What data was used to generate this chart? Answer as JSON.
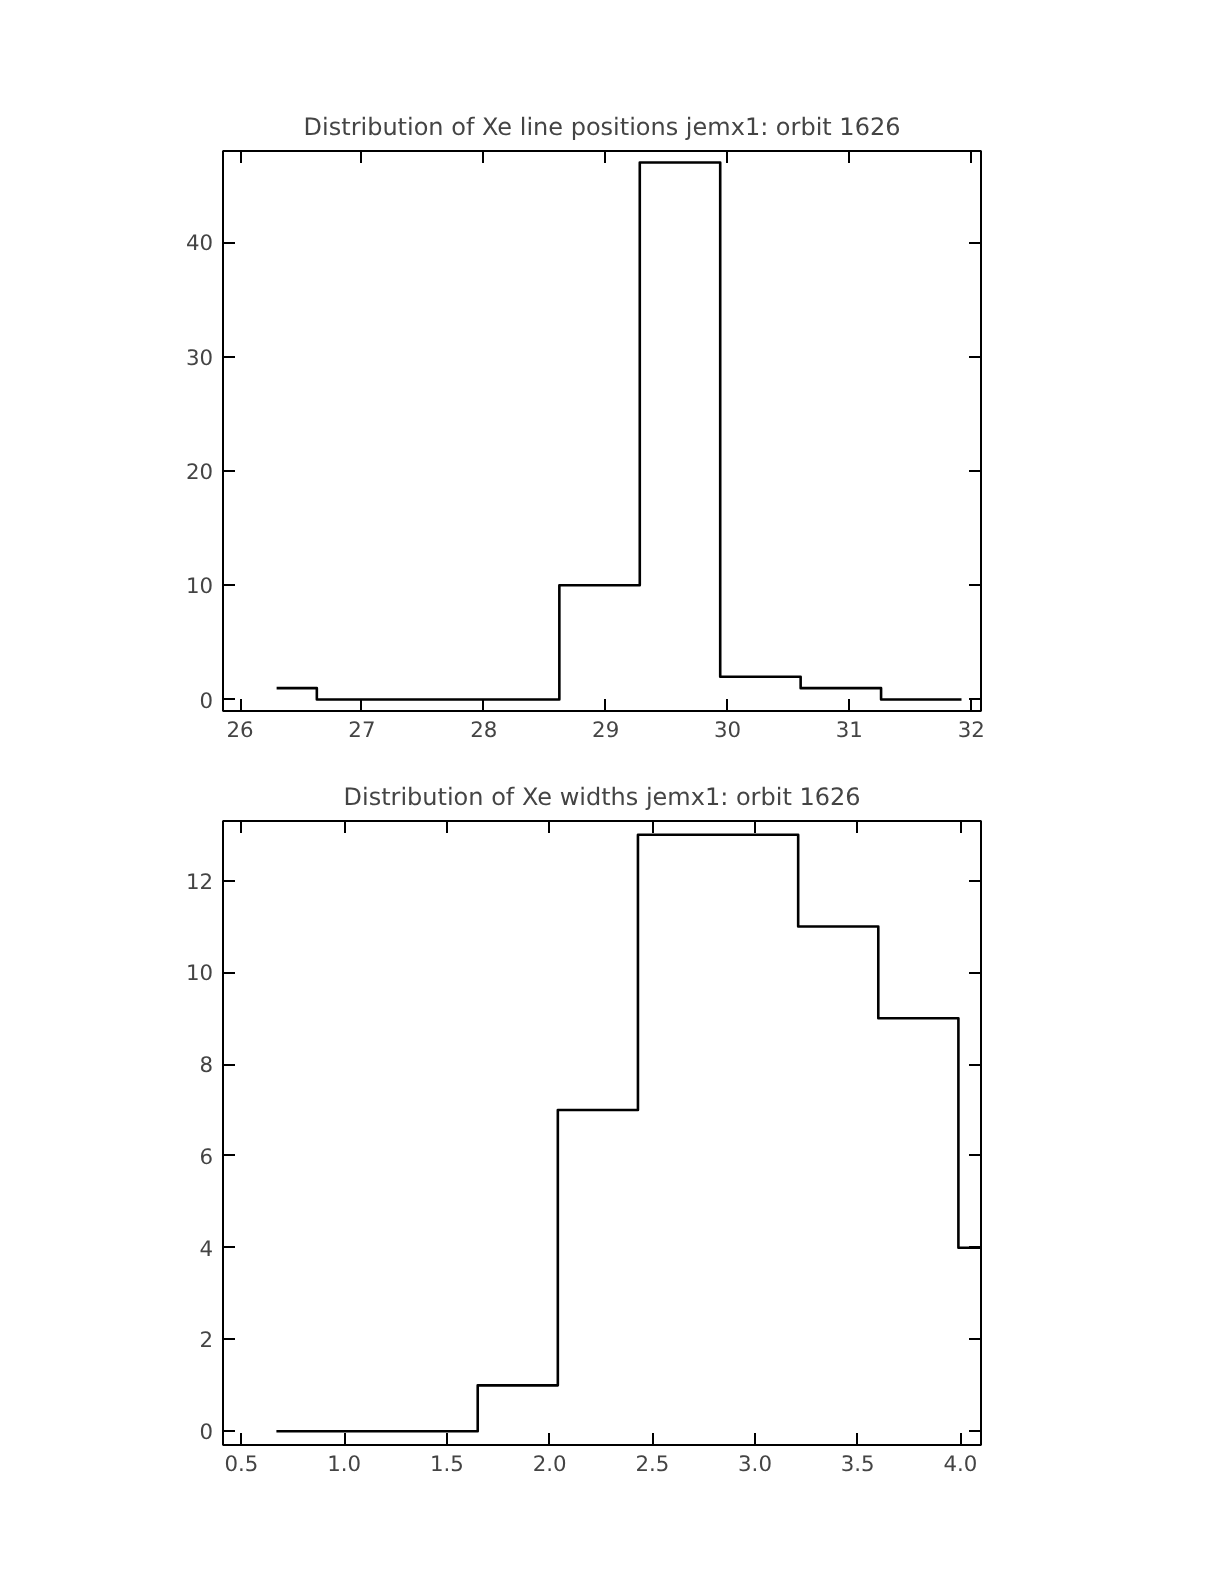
{
  "chart_data": [
    {
      "type": "histogram",
      "title": "Distribution of Xe line positions jemx1: orbit 1626",
      "bins": [
        26.3,
        26.63,
        27.29,
        27.95,
        28.62,
        29.28,
        29.94,
        30.6,
        31.26,
        31.92
      ],
      "values": [
        1,
        0,
        0,
        0,
        10,
        47,
        2,
        1,
        0
      ],
      "color": "#000000",
      "xlim": [
        25.86,
        32.08
      ],
      "ylim": [
        -1,
        48
      ],
      "xticks": [
        26,
        27,
        28,
        29,
        30,
        31,
        32
      ],
      "yticks": [
        0,
        10,
        20,
        30,
        40
      ],
      "grid": false
    },
    {
      "type": "histogram",
      "title": "Distribution of Xe widths jemx1: orbit 1626",
      "bins": [
        0.67,
        0.87,
        1.26,
        1.65,
        2.04,
        2.43,
        2.82,
        3.21,
        3.6,
        3.99,
        4.1
      ],
      "values": [
        0,
        0,
        0,
        1,
        7,
        13,
        13,
        11,
        9,
        4
      ],
      "color": "#000000",
      "xlim": [
        0.41,
        4.1
      ],
      "ylim": [
        -0.3,
        13.3
      ],
      "xticks": [
        {
          "value": 0.5,
          "label": "0.5"
        },
        {
          "value": 1.0,
          "label": "1.0"
        },
        {
          "value": 1.5,
          "label": "1.5"
        },
        {
          "value": 2.0,
          "label": "2.0"
        },
        {
          "value": 2.5,
          "label": "2.5"
        },
        {
          "value": 3.0,
          "label": "3.0"
        },
        {
          "value": 3.5,
          "label": "3.5"
        },
        {
          "value": 4.0,
          "label": "4.0"
        }
      ],
      "yticks": [
        0,
        2,
        4,
        6,
        8,
        10,
        12
      ],
      "grid": false
    }
  ]
}
